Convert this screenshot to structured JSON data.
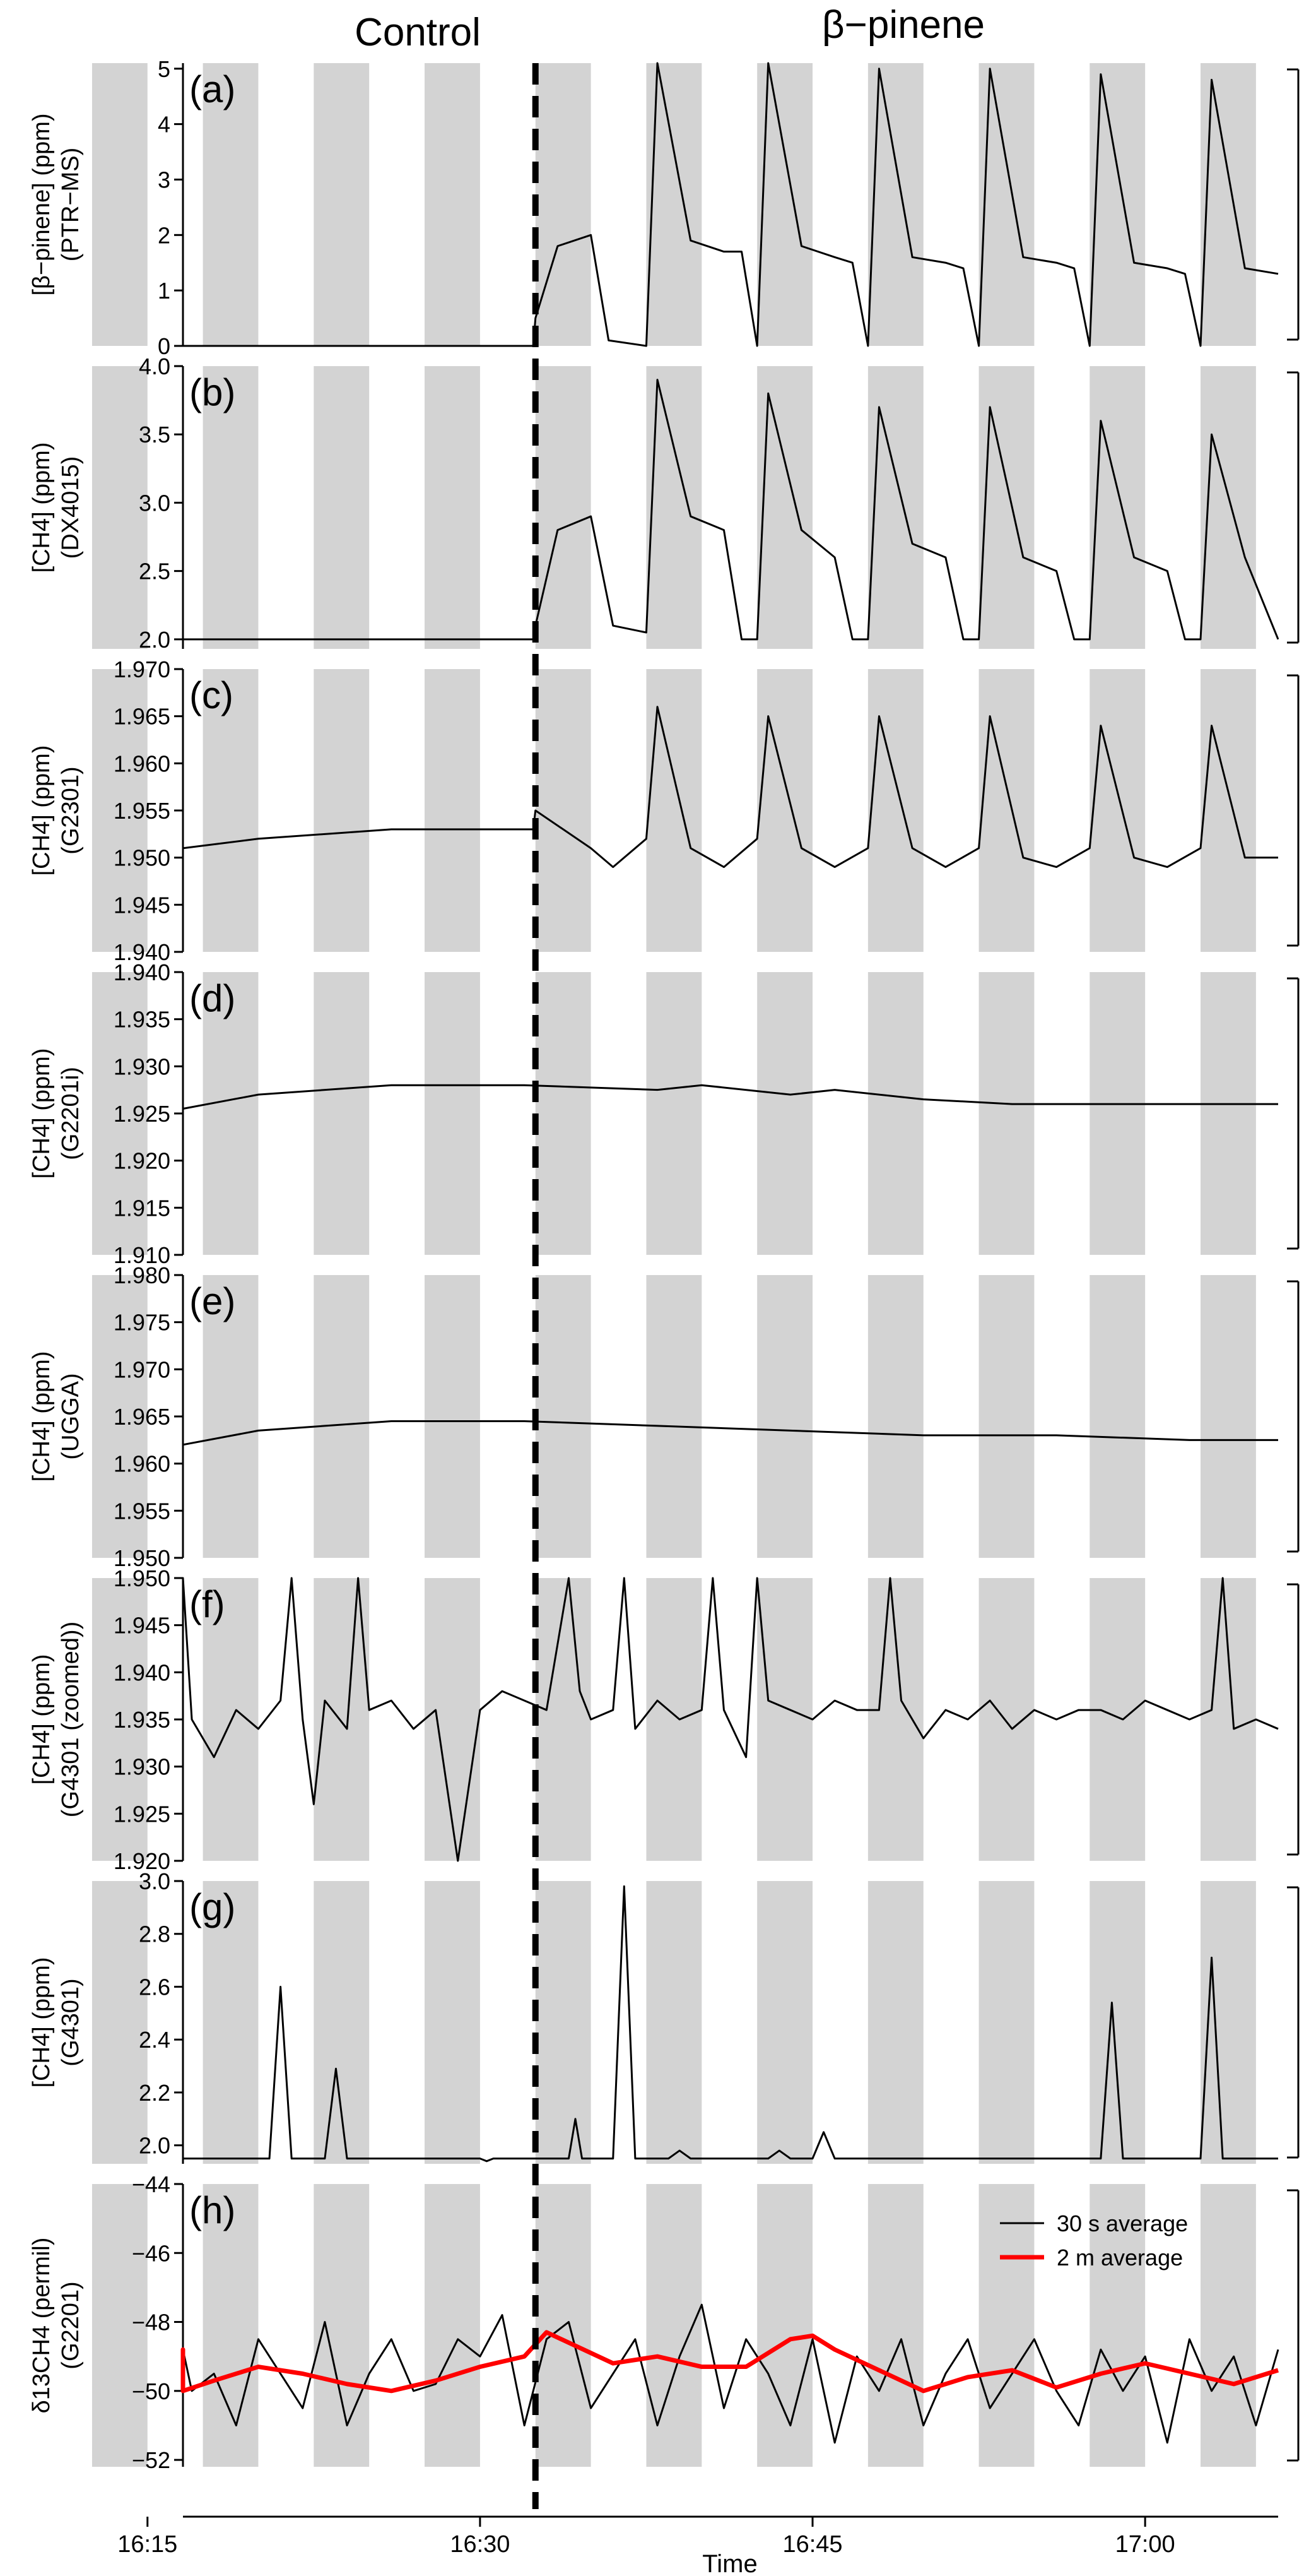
{
  "figure": {
    "top_labels": {
      "left": "Control",
      "right": "β−pinene"
    },
    "xlabel": "Time",
    "x_ticks": [
      "16:15",
      "16:30",
      "16:45",
      "17:00"
    ],
    "x_range_minutes": [
      16.6,
      66.0
    ],
    "x_tick_minutes": [
      15,
      30,
      45,
      60
    ],
    "event_line_minute": 32.5,
    "shaded_bands_minutes": [
      [
        12.5,
        15
      ],
      [
        17.5,
        20
      ],
      [
        22.5,
        25
      ],
      [
        27.5,
        30
      ],
      [
        32.5,
        35
      ],
      [
        37.5,
        40
      ],
      [
        42.5,
        45
      ],
      [
        47.5,
        50
      ],
      [
        52.5,
        55
      ],
      [
        57.5,
        60
      ],
      [
        62.5,
        65
      ]
    ],
    "colors": {
      "band": "#d3d3d3",
      "line": "#000000",
      "avg2m": "#ff0000"
    }
  },
  "chart_data": [
    {
      "type": "line",
      "panel": "(a)",
      "ylabel": [
        "[β−pinene] (ppm)",
        "(PTR−MS)"
      ],
      "ylim": [
        0,
        5.1
      ],
      "yticks": [
        0,
        1,
        2,
        3,
        4,
        5
      ],
      "ytick_labels": [
        "0",
        "1",
        "2",
        "3",
        "4",
        "5"
      ],
      "series": [
        {
          "x": [
            8,
            32.4,
            32.5,
            33.5,
            35,
            35.8,
            37.5,
            38,
            39.5,
            41,
            41.8,
            42.5,
            43,
            44.5,
            46,
            46.8,
            47.5,
            48,
            49.5,
            51,
            51.8,
            52.5,
            53,
            54.5,
            56,
            56.8,
            57.5,
            58,
            59.5,
            61,
            61.8,
            62.5,
            63,
            64.5,
            66
          ],
          "y": [
            0,
            0,
            0.5,
            1.8,
            2,
            0.1,
            0,
            5.2,
            1.9,
            1.7,
            1.7,
            0,
            5.1,
            1.8,
            1.6,
            1.5,
            0,
            5,
            1.6,
            1.5,
            1.4,
            0,
            5,
            1.6,
            1.5,
            1.4,
            0,
            4.9,
            1.5,
            1.4,
            1.3,
            0,
            4.8,
            1.4,
            1.3
          ]
        }
      ]
    },
    {
      "type": "line",
      "panel": "(b)",
      "ylabel": [
        "[CH4] (ppm)",
        "(DX4015)"
      ],
      "ylim": [
        1.93,
        4.0
      ],
      "yticks": [
        2.0,
        2.5,
        3.0,
        3.5,
        4.0
      ],
      "ytick_labels": [
        "2.0",
        "2.5",
        "3.0",
        "3.5",
        "4.0"
      ],
      "series": [
        {
          "x": [
            8,
            14,
            20,
            26,
            32.4,
            32.5,
            33.5,
            35,
            36,
            37.5,
            38,
            39.5,
            41,
            41.8,
            42.5,
            43,
            44.5,
            46,
            46.8,
            47.5,
            48,
            49.5,
            51,
            51.8,
            52.5,
            53,
            54.5,
            56,
            56.8,
            57.5,
            58,
            59.5,
            61,
            61.8,
            62.5,
            63,
            64.5,
            66
          ],
          "y": [
            2.0,
            2.0,
            2.0,
            2.0,
            2.0,
            2.1,
            2.8,
            2.9,
            2.1,
            2.05,
            3.9,
            2.9,
            2.8,
            2.0,
            2.0,
            3.8,
            2.8,
            2.6,
            2.0,
            2.0,
            3.7,
            2.7,
            2.6,
            2.0,
            2.0,
            3.7,
            2.6,
            2.5,
            2.0,
            2.0,
            3.6,
            2.6,
            2.5,
            2.0,
            2.0,
            3.5,
            2.6,
            2.0
          ]
        }
      ]
    },
    {
      "type": "line",
      "panel": "(c)",
      "ylabel": [
        "[CH4] (ppm)",
        "(G2301)"
      ],
      "ylim": [
        1.94,
        1.97
      ],
      "yticks": [
        1.94,
        1.945,
        1.95,
        1.955,
        1.96,
        1.965,
        1.97
      ],
      "ytick_labels": [
        "1.940",
        "1.945",
        "1.950",
        "1.955",
        "1.960",
        "1.965",
        "1.970"
      ],
      "series": [
        {
          "x": [
            8,
            14,
            20,
            26,
            32.4,
            32.5,
            35,
            36,
            37.5,
            38,
            39.5,
            41,
            42.5,
            43,
            44.5,
            46,
            47.5,
            48,
            49.5,
            51,
            52.5,
            53,
            54.5,
            56,
            57.5,
            58,
            59.5,
            61,
            62.5,
            63,
            64.5,
            66
          ],
          "y": [
            1.949,
            1.951,
            1.952,
            1.953,
            1.953,
            1.955,
            1.951,
            1.949,
            1.952,
            1.966,
            1.951,
            1.949,
            1.952,
            1.965,
            1.951,
            1.949,
            1.951,
            1.965,
            1.951,
            1.949,
            1.951,
            1.965,
            1.95,
            1.949,
            1.951,
            1.964,
            1.95,
            1.949,
            1.951,
            1.964,
            1.95,
            1.95
          ]
        }
      ]
    },
    {
      "type": "line",
      "panel": "(d)",
      "ylabel": [
        "[CH4] (ppm)",
        "(G2201i)"
      ],
      "ylim": [
        1.91,
        1.94
      ],
      "yticks": [
        1.91,
        1.915,
        1.92,
        1.925,
        1.93,
        1.935,
        1.94
      ],
      "ytick_labels": [
        "1.910",
        "1.915",
        "1.920",
        "1.925",
        "1.930",
        "1.935",
        "1.940"
      ],
      "series": [
        {
          "x": [
            8,
            14,
            20,
            26,
            32,
            38,
            40,
            44,
            46,
            50,
            54,
            58,
            62,
            66
          ],
          "y": [
            1.9235,
            1.9255,
            1.927,
            1.928,
            1.928,
            1.9275,
            1.928,
            1.927,
            1.9275,
            1.9265,
            1.926,
            1.926,
            1.926,
            1.926
          ]
        }
      ]
    },
    {
      "type": "line",
      "panel": "(e)",
      "ylabel": [
        "[CH4] (ppm)",
        "(UGGA)"
      ],
      "ylim": [
        1.95,
        1.98
      ],
      "yticks": [
        1.95,
        1.955,
        1.96,
        1.965,
        1.97,
        1.975,
        1.98
      ],
      "ytick_labels": [
        "1.950",
        "1.955",
        "1.960",
        "1.965",
        "1.970",
        "1.975",
        "1.980"
      ],
      "series": [
        {
          "x": [
            8,
            14,
            20,
            26,
            32,
            38,
            44,
            50,
            56,
            62,
            66
          ],
          "y": [
            1.9605,
            1.962,
            1.9635,
            1.9645,
            1.9645,
            1.964,
            1.9635,
            1.963,
            1.963,
            1.9625,
            1.9625
          ]
        }
      ]
    },
    {
      "type": "line",
      "panel": "(f)",
      "ylabel": [
        "[CH4] (ppm)",
        "(G4301 (zoomed))"
      ],
      "ylim": [
        1.92,
        1.95
      ],
      "yticks": [
        1.92,
        1.925,
        1.93,
        1.935,
        1.94,
        1.945,
        1.95
      ],
      "ytick_labels": [
        "1.920",
        "1.925",
        "1.930",
        "1.935",
        "1.940",
        "1.945",
        "1.950"
      ],
      "series": [
        {
          "x": [
            8,
            9,
            10,
            11,
            11.5,
            12,
            13,
            14,
            15,
            16,
            16.5,
            17,
            18,
            19,
            20,
            21,
            21.5,
            22,
            22.5,
            23,
            24,
            24.5,
            25,
            26,
            27,
            28,
            29,
            30,
            31,
            32,
            33,
            34,
            34.5,
            35,
            36,
            36.5,
            37,
            38,
            39,
            40,
            40.5,
            41,
            42,
            42.5,
            43,
            44,
            45,
            46,
            47,
            48,
            48.5,
            49,
            50,
            51,
            52,
            53,
            54,
            55,
            56,
            57,
            58,
            59,
            60,
            61,
            62,
            63,
            63.5,
            64,
            65,
            66
          ],
          "y": [
            1.933,
            1.935,
            1.931,
            1.936,
            1.952,
            1.934,
            1.937,
            1.933,
            1.936,
            1.934,
            1.952,
            1.935,
            1.931,
            1.936,
            1.934,
            1.937,
            1.952,
            1.935,
            1.926,
            1.937,
            1.934,
            1.952,
            1.936,
            1.937,
            1.934,
            1.936,
            1.92,
            1.936,
            1.938,
            1.937,
            1.936,
            1.952,
            1.938,
            1.935,
            1.936,
            1.952,
            1.934,
            1.937,
            1.935,
            1.936,
            1.952,
            1.936,
            1.931,
            1.952,
            1.937,
            1.936,
            1.935,
            1.937,
            1.936,
            1.936,
            1.952,
            1.937,
            1.933,
            1.936,
            1.935,
            1.937,
            1.934,
            1.936,
            1.935,
            1.936,
            1.936,
            1.935,
            1.937,
            1.936,
            1.935,
            1.936,
            1.952,
            1.934,
            1.935,
            1.934
          ]
        }
      ]
    },
    {
      "type": "line",
      "panel": "(g)",
      "ylabel": [
        "[CH4] (ppm)",
        "(G4301)"
      ],
      "ylim": [
        1.93,
        3.0
      ],
      "yticks": [
        2.0,
        2.2,
        2.4,
        2.6,
        2.8,
        3.0
      ],
      "ytick_labels": [
        "2.0",
        "2.2",
        "2.4",
        "2.6",
        "2.8",
        "3.0"
      ],
      "series": [
        {
          "x": [
            8,
            10,
            10.5,
            11,
            12,
            16,
            16.3,
            16.6,
            17,
            20.5,
            21,
            21.5,
            23,
            23.5,
            24,
            24.5,
            30,
            30.3,
            30.6,
            33,
            34,
            34.3,
            34.6,
            36,
            36.5,
            37,
            37.3,
            38.5,
            39,
            39.5,
            43,
            43.5,
            44,
            45,
            45.5,
            46,
            58,
            58.5,
            59,
            59.5,
            62.5,
            63,
            63.5,
            66
          ],
          "y": [
            1.95,
            1.95,
            2.17,
            1.95,
            1.95,
            1.95,
            2.14,
            1.95,
            1.95,
            1.95,
            2.6,
            1.95,
            1.95,
            2.29,
            1.95,
            1.95,
            1.95,
            1.94,
            1.95,
            1.95,
            1.95,
            2.1,
            1.95,
            1.95,
            2.98,
            1.95,
            1.95,
            1.95,
            1.98,
            1.95,
            1.95,
            1.98,
            1.95,
            1.95,
            2.05,
            1.95,
            1.95,
            2.54,
            1.95,
            1.95,
            1.95,
            2.71,
            1.95,
            1.95
          ]
        }
      ]
    },
    {
      "type": "line",
      "panel": "(h)",
      "ylabel": [
        "δ13CH4 (permil)",
        "(G2201)"
      ],
      "ylim": [
        -52.2,
        -44
      ],
      "yticks": [
        -52,
        -50,
        -48,
        -46,
        -44
      ],
      "ytick_labels": [
        "−52",
        "−50",
        "−48",
        "−46",
        "−44"
      ],
      "legend": {
        "placement": "top-right",
        "entries": [
          "30 s average",
          "2 m average"
        ]
      },
      "series": [
        {
          "name": "30 s average",
          "x": [
            8,
            9,
            10,
            11,
            12,
            13,
            14,
            15,
            16,
            17,
            18,
            19,
            20,
            21,
            22,
            23,
            24,
            25,
            26,
            27,
            28,
            29,
            30,
            31,
            32,
            33,
            34,
            35,
            36,
            37,
            38,
            39,
            40,
            41,
            42,
            43,
            44,
            45,
            46,
            47,
            48,
            49,
            50,
            51,
            52,
            53,
            54,
            55,
            56,
            57,
            58,
            59,
            60,
            61,
            62,
            63,
            64,
            65,
            66
          ],
          "y": [
            -49.5,
            -48.5,
            -50,
            -49,
            -48,
            -50.5,
            -49,
            -51,
            -48.8,
            -50,
            -49.5,
            -51,
            -48.5,
            -49.5,
            -50.5,
            -48,
            -51,
            -49.5,
            -48.5,
            -50,
            -49.8,
            -48.5,
            -49,
            -47.8,
            -51,
            -48.5,
            -48,
            -50.5,
            -49.5,
            -48.5,
            -51,
            -49,
            -47.5,
            -50.5,
            -48.5,
            -49.5,
            -51,
            -48.5,
            -51.5,
            -49,
            -50,
            -48.5,
            -51,
            -49.5,
            -48.5,
            -50.5,
            -49.5,
            -48.5,
            -50,
            -51,
            -48.8,
            -50,
            -49,
            -51.5,
            -48.5,
            -50,
            -49,
            -51,
            -48.8
          ]
        },
        {
          "name": "2 m average",
          "x": [
            8,
            10,
            12,
            14,
            16,
            18,
            20,
            22,
            24,
            26,
            28,
            30,
            32,
            33,
            34,
            36,
            38,
            40,
            42,
            44,
            45,
            46,
            48,
            50,
            52,
            54,
            56,
            58,
            60,
            62,
            64,
            66
          ],
          "y": [
            -49.3,
            -49,
            -48.8,
            -49.5,
            -50,
            -49.7,
            -49.3,
            -49.5,
            -49.8,
            -50,
            -49.7,
            -49.3,
            -49,
            -48.3,
            -48.6,
            -49.2,
            -49,
            -49.3,
            -49.3,
            -48.5,
            -48.4,
            -48.8,
            -49.4,
            -50,
            -49.6,
            -49.4,
            -49.9,
            -49.5,
            -49.2,
            -49.5,
            -49.8,
            -49.4
          ]
        }
      ]
    }
  ]
}
